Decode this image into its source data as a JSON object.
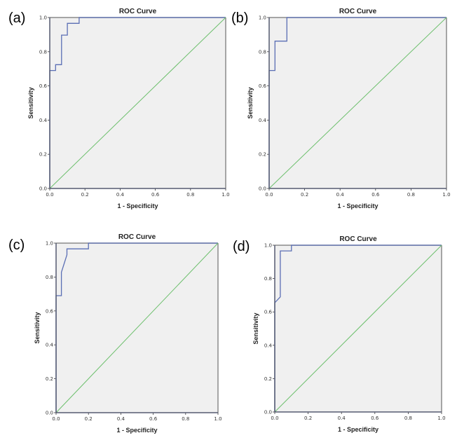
{
  "chart_data": [
    {
      "panel": "(a)",
      "type": "line",
      "title": "ROC Curve",
      "xlabel": "1 - Specificity",
      "ylabel": "Sensitivity",
      "xlim": [
        0,
        1
      ],
      "ylim": [
        0,
        1
      ],
      "xticks": [
        "0.0",
        "0.2",
        "0.4",
        "0.6",
        "0.8",
        "1.0"
      ],
      "yticks": [
        "0.0",
        "0.2",
        "0.4",
        "0.6",
        "0.8",
        "1.0"
      ],
      "grid": false,
      "series": [
        {
          "name": "ROC",
          "color": "#5a6eb4",
          "x": [
            0,
            0,
            0.033,
            0.033,
            0.067,
            0.067,
            0.1,
            0.1,
            0.167,
            0.167,
            1
          ],
          "y": [
            0,
            0.69,
            0.69,
            0.724,
            0.724,
            0.897,
            0.897,
            0.966,
            0.966,
            1.0,
            1.0
          ]
        },
        {
          "name": "Reference Line",
          "color": "#6cbf6c",
          "x": [
            0,
            1
          ],
          "y": [
            0,
            1
          ]
        }
      ]
    },
    {
      "panel": "(b)",
      "type": "line",
      "title": "ROC Curve",
      "xlabel": "1 - Specificity",
      "ylabel": "Sensitivity",
      "xlim": [
        0,
        1
      ],
      "ylim": [
        0,
        1
      ],
      "xticks": [
        "0.0",
        "0.2",
        "0.4",
        "0.6",
        "0.8",
        "1.0"
      ],
      "yticks": [
        "0.0",
        "0.2",
        "0.4",
        "0.6",
        "0.8",
        "1.0"
      ],
      "grid": false,
      "series": [
        {
          "name": "ROC",
          "color": "#5a6eb4",
          "x": [
            0,
            0,
            0.033,
            0.033,
            0.1,
            0.1,
            1
          ],
          "y": [
            0,
            0.69,
            0.69,
            0.862,
            0.862,
            1.0,
            1.0
          ]
        },
        {
          "name": "Reference Line",
          "color": "#6cbf6c",
          "x": [
            0,
            1
          ],
          "y": [
            0,
            1
          ]
        }
      ]
    },
    {
      "panel": "(c)",
      "type": "line",
      "title": "ROC Curve",
      "xlabel": "1 - Specificity",
      "ylabel": "Sensitivity",
      "xlim": [
        0,
        1
      ],
      "ylim": [
        0,
        1
      ],
      "xticks": [
        "0.0",
        "0.2",
        "0.4",
        "0.6",
        "0.8",
        "1.0"
      ],
      "yticks": [
        "0.0",
        "0.2",
        "0.4",
        "0.6",
        "0.8",
        "1.0"
      ],
      "grid": false,
      "series": [
        {
          "name": "ROC",
          "color": "#5a6eb4",
          "x": [
            0,
            0,
            0.033,
            0.033,
            0.067,
            0.067,
            0.2,
            0.2,
            1
          ],
          "y": [
            0,
            0.69,
            0.69,
            0.828,
            0.931,
            0.966,
            0.966,
            1.0,
            1.0
          ]
        },
        {
          "name": "Reference Line",
          "color": "#6cbf6c",
          "x": [
            0,
            1
          ],
          "y": [
            0,
            1
          ]
        }
      ]
    },
    {
      "panel": "(d)",
      "type": "line",
      "title": "ROC Curve",
      "xlabel": "1 - Specificity",
      "ylabel": "Sensitivity",
      "xlim": [
        0,
        1
      ],
      "ylim": [
        0,
        1
      ],
      "xticks": [
        "0.0",
        "0.2",
        "0.4",
        "0.6",
        "0.8",
        "1.0"
      ],
      "yticks": [
        "0.0",
        "0.2",
        "0.4",
        "0.6",
        "0.8",
        "1.0"
      ],
      "grid": false,
      "series": [
        {
          "name": "ROC",
          "color": "#5a6eb4",
          "x": [
            0,
            0,
            0.033,
            0.033,
            0.1,
            0.1,
            1
          ],
          "y": [
            0,
            0.655,
            0.69,
            0.966,
            0.966,
            1.0,
            1.0
          ]
        },
        {
          "name": "Reference Line",
          "color": "#6cbf6c",
          "x": [
            0,
            1
          ],
          "y": [
            0,
            1
          ]
        }
      ]
    }
  ],
  "colors": {
    "plot_background": "#f0f0f0",
    "axis": "#555a70",
    "frame": "#8a8a8a"
  }
}
